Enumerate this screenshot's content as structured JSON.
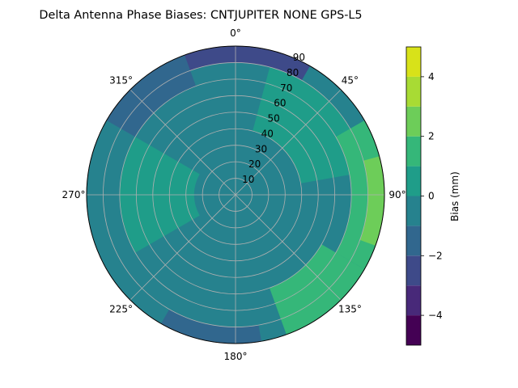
{
  "chart_data": {
    "type": "polar-contour",
    "title": "Delta Antenna Phase Biases: CNTJUPITER      NONE GPS-L5",
    "theta_ticks": [
      {
        "deg": 0,
        "label": "0°"
      },
      {
        "deg": 45,
        "label": "45°"
      },
      {
        "deg": 90,
        "label": "90°"
      },
      {
        "deg": 135,
        "label": "135°"
      },
      {
        "deg": 180,
        "label": "180°"
      },
      {
        "deg": 225,
        "label": "225°"
      },
      {
        "deg": 270,
        "label": "270°"
      },
      {
        "deg": 315,
        "label": "315°"
      }
    ],
    "r_ticks": [
      10,
      20,
      30,
      40,
      50,
      60,
      70,
      80,
      90
    ],
    "r_range": [
      0,
      90
    ],
    "theta_direction": "clockwise",
    "theta_zero": "north",
    "grid": true,
    "colorbar": {
      "label": "Bias (mm)",
      "range": [
        -5,
        5
      ],
      "ticks": [
        -4,
        -2,
        0,
        2,
        4
      ],
      "levels": [
        -5,
        -4.375,
        -3.75,
        -3.125,
        -2.5,
        -1.875,
        -1.25,
        -0.625,
        0,
        0.625,
        1.25,
        1.875,
        2.5,
        3.125,
        3.75,
        4.375,
        5
      ],
      "colors": [
        "#440154",
        "#482979",
        "#3e4a89",
        "#31678e",
        "#26828e",
        "#1f9d89",
        "#35b779",
        "#6dcd59",
        "#a8db34",
        "#d8e219"
      ],
      "band_edges": [
        -5,
        -4,
        -3,
        -2,
        -1,
        0,
        1,
        2,
        3,
        4,
        5
      ]
    },
    "regions": [
      {
        "name": "background",
        "value": -0.5
      },
      {
        "name": "north-edge",
        "azimuth_range": [
          330,
          30
        ],
        "elevation_range": [
          80,
          90
        ],
        "value": -2.5
      },
      {
        "name": "northeast-band",
        "azimuth_range": [
          15,
          80
        ],
        "elevation_range": [
          40,
          80
        ],
        "value": 0.5
      },
      {
        "name": "east-edge",
        "azimuth_range": [
          60,
          120
        ],
        "elevation_range": [
          70,
          90
        ],
        "value": 1.5
      },
      {
        "name": "east-max",
        "azimuth_range": [
          75,
          110
        ],
        "elevation_range": [
          80,
          90
        ],
        "value": 2.5
      },
      {
        "name": "west-patch",
        "azimuth_range": [
          240,
          300
        ],
        "elevation_range": [
          25,
          70
        ],
        "value": 0.5
      },
      {
        "name": "southeast",
        "azimuth_range": [
          120,
          160
        ],
        "elevation_range": [
          60,
          90
        ],
        "value": 1.5
      },
      {
        "name": "south-low",
        "azimuth_range": [
          170,
          210
        ],
        "elevation_range": [
          80,
          90
        ],
        "value": -1.5
      },
      {
        "name": "northwest-edge",
        "azimuth_range": [
          300,
          340
        ],
        "elevation_range": [
          70,
          90
        ],
        "value": -1.5
      }
    ]
  }
}
